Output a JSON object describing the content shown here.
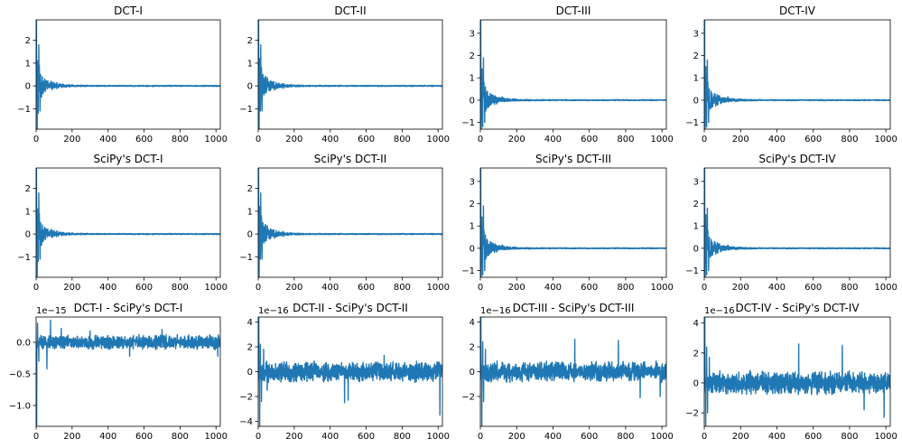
{
  "figure": {
    "line_color": "#1f77b4"
  },
  "chart_data": [
    {
      "type": "line",
      "title": "DCT-I",
      "xlim": [
        0,
        1024
      ],
      "ylim": [
        -1.9,
        2.9
      ],
      "xticks": [
        0,
        200,
        400,
        600,
        800,
        1000
      ],
      "yticks": [
        -1,
        0,
        1,
        2
      ],
      "offset_text": "",
      "signal": {
        "seed": 11,
        "spikes": [
          [
            2,
            2.9
          ],
          [
            6,
            -1.9
          ],
          [
            10,
            1.1
          ],
          [
            12,
            -1.2
          ],
          [
            15,
            1.8
          ],
          [
            18,
            0.9
          ],
          [
            22,
            -1.1
          ],
          [
            25,
            0.5
          ],
          [
            30,
            -0.5
          ],
          [
            35,
            0.4
          ],
          [
            40,
            -0.3
          ],
          [
            48,
            0.3
          ],
          [
            60,
            0.2
          ],
          [
            90,
            0.15
          ]
        ],
        "decay": 60,
        "amp0": 0.6,
        "floor": 0.02
      }
    },
    {
      "type": "line",
      "title": "DCT-II",
      "xlim": [
        0,
        1024
      ],
      "ylim": [
        -1.9,
        2.9
      ],
      "xticks": [
        0,
        200,
        400,
        600,
        800,
        1000
      ],
      "yticks": [
        -1,
        0,
        1,
        2
      ],
      "offset_text": "",
      "signal": {
        "seed": 12,
        "spikes": [
          [
            2,
            2.9
          ],
          [
            5,
            -1.9
          ],
          [
            9,
            1.2
          ],
          [
            12,
            -1.1
          ],
          [
            14,
            1.8
          ],
          [
            18,
            0.8
          ],
          [
            21,
            -1.1
          ],
          [
            26,
            0.5
          ],
          [
            31,
            -0.4
          ],
          [
            36,
            0.3
          ],
          [
            44,
            -0.3
          ],
          [
            52,
            0.3
          ],
          [
            70,
            0.2
          ],
          [
            100,
            0.15
          ]
        ],
        "decay": 60,
        "amp0": 0.6,
        "floor": 0.02
      }
    },
    {
      "type": "line",
      "title": "DCT-III",
      "xlim": [
        0,
        1024
      ],
      "ylim": [
        -1.3,
        3.6
      ],
      "xticks": [
        0,
        200,
        400,
        600,
        800,
        1000
      ],
      "yticks": [
        -1,
        0,
        1,
        2,
        3
      ],
      "offset_text": "",
      "signal": {
        "seed": 13,
        "spikes": [
          [
            2,
            3.6
          ],
          [
            5,
            -1.3
          ],
          [
            9,
            1.4
          ],
          [
            13,
            -1.2
          ],
          [
            17,
            1.9
          ],
          [
            20,
            0.8
          ],
          [
            24,
            -1.0
          ],
          [
            28,
            0.6
          ],
          [
            33,
            -0.4
          ],
          [
            38,
            0.4
          ],
          [
            46,
            -0.3
          ],
          [
            55,
            0.3
          ],
          [
            80,
            0.2
          ],
          [
            120,
            0.15
          ]
        ],
        "decay": 60,
        "amp0": 0.6,
        "floor": 0.02
      }
    },
    {
      "type": "line",
      "title": "DCT-IV",
      "xlim": [
        0,
        1024
      ],
      "ylim": [
        -1.3,
        3.6
      ],
      "xticks": [
        0,
        200,
        400,
        600,
        800,
        1000
      ],
      "yticks": [
        -1,
        0,
        1,
        2,
        3
      ],
      "offset_text": "",
      "signal": {
        "seed": 14,
        "spikes": [
          [
            2,
            3.6
          ],
          [
            5,
            -1.3
          ],
          [
            9,
            1.5
          ],
          [
            13,
            -1.2
          ],
          [
            17,
            1.8
          ],
          [
            20,
            0.8
          ],
          [
            24,
            -1.0
          ],
          [
            28,
            0.5
          ],
          [
            33,
            -0.4
          ],
          [
            38,
            0.4
          ],
          [
            46,
            -0.3
          ],
          [
            56,
            0.3
          ],
          [
            84,
            0.2
          ],
          [
            130,
            0.15
          ]
        ],
        "decay": 60,
        "amp0": 0.6,
        "floor": 0.02
      }
    },
    {
      "type": "line",
      "title": "SciPy's DCT-I",
      "xlim": [
        0,
        1024
      ],
      "ylim": [
        -1.9,
        2.9
      ],
      "xticks": [
        0,
        200,
        400,
        600,
        800,
        1000
      ],
      "yticks": [
        -1,
        0,
        1,
        2
      ],
      "offset_text": "",
      "signal": {
        "seed": 11,
        "spikes": [
          [
            2,
            2.9
          ],
          [
            6,
            -1.9
          ],
          [
            10,
            1.1
          ],
          [
            12,
            -1.2
          ],
          [
            15,
            1.8
          ],
          [
            18,
            0.9
          ],
          [
            22,
            -1.1
          ],
          [
            25,
            0.5
          ],
          [
            30,
            -0.5
          ],
          [
            35,
            0.4
          ],
          [
            40,
            -0.3
          ],
          [
            48,
            0.3
          ],
          [
            60,
            0.2
          ],
          [
            90,
            0.15
          ]
        ],
        "decay": 60,
        "amp0": 0.6,
        "floor": 0.02
      }
    },
    {
      "type": "line",
      "title": "SciPy's DCT-II",
      "xlim": [
        0,
        1024
      ],
      "ylim": [
        -1.9,
        2.9
      ],
      "xticks": [
        0,
        200,
        400,
        600,
        800,
        1000
      ],
      "yticks": [
        -1,
        0,
        1,
        2
      ],
      "offset_text": "",
      "signal": {
        "seed": 12,
        "spikes": [
          [
            2,
            2.9
          ],
          [
            5,
            -1.9
          ],
          [
            9,
            1.2
          ],
          [
            12,
            -1.1
          ],
          [
            14,
            1.8
          ],
          [
            18,
            0.8
          ],
          [
            21,
            -1.1
          ],
          [
            26,
            0.5
          ],
          [
            31,
            -0.4
          ],
          [
            36,
            0.3
          ],
          [
            44,
            -0.3
          ],
          [
            52,
            0.3
          ],
          [
            70,
            0.2
          ],
          [
            100,
            0.15
          ]
        ],
        "decay": 60,
        "amp0": 0.6,
        "floor": 0.02
      }
    },
    {
      "type": "line",
      "title": "SciPy's DCT-III",
      "xlim": [
        0,
        1024
      ],
      "ylim": [
        -1.3,
        3.6
      ],
      "xticks": [
        0,
        200,
        400,
        600,
        800,
        1000
      ],
      "yticks": [
        -1,
        0,
        1,
        2,
        3
      ],
      "offset_text": "",
      "signal": {
        "seed": 13,
        "spikes": [
          [
            2,
            3.6
          ],
          [
            5,
            -1.3
          ],
          [
            9,
            1.4
          ],
          [
            13,
            -1.2
          ],
          [
            17,
            1.9
          ],
          [
            20,
            0.8
          ],
          [
            24,
            -1.0
          ],
          [
            28,
            0.6
          ],
          [
            33,
            -0.4
          ],
          [
            38,
            0.4
          ],
          [
            46,
            -0.3
          ],
          [
            55,
            0.3
          ],
          [
            80,
            0.2
          ],
          [
            120,
            0.15
          ]
        ],
        "decay": 60,
        "amp0": 0.6,
        "floor": 0.02
      }
    },
    {
      "type": "line",
      "title": "SciPy's DCT-IV",
      "xlim": [
        0,
        1024
      ],
      "ylim": [
        -1.3,
        3.6
      ],
      "xticks": [
        0,
        200,
        400,
        600,
        800,
        1000
      ],
      "yticks": [
        -1,
        0,
        1,
        2,
        3
      ],
      "offset_text": "",
      "signal": {
        "seed": 14,
        "spikes": [
          [
            2,
            3.6
          ],
          [
            5,
            -1.3
          ],
          [
            9,
            1.5
          ],
          [
            13,
            -1.2
          ],
          [
            17,
            1.8
          ],
          [
            20,
            0.8
          ],
          [
            24,
            -1.0
          ],
          [
            28,
            0.5
          ],
          [
            33,
            -0.4
          ],
          [
            38,
            0.4
          ],
          [
            46,
            -0.3
          ],
          [
            56,
            0.3
          ],
          [
            84,
            0.2
          ],
          [
            130,
            0.15
          ]
        ],
        "decay": 60,
        "amp0": 0.6,
        "floor": 0.02
      }
    },
    {
      "type": "line",
      "title": "DCT-I - SciPy's DCT-I",
      "xlim": [
        0,
        1024
      ],
      "ylim": [
        -1.33,
        0.4
      ],
      "xticks": [
        0,
        200,
        400,
        600,
        800,
        1000
      ],
      "yticks": [
        -1.0,
        -0.5,
        0.0
      ],
      "offset_text": "1e−15",
      "signal": {
        "seed": 21,
        "spikes": [
          [
            3,
            -1.33
          ],
          [
            8,
            0.3
          ],
          [
            15,
            -0.3
          ],
          [
            60,
            -0.42
          ],
          [
            80,
            0.35
          ],
          [
            140,
            0.22
          ],
          [
            300,
            0.18
          ],
          [
            520,
            -0.22
          ],
          [
            700,
            0.2
          ],
          [
            1010,
            -0.22
          ]
        ],
        "decay": 0,
        "amp0": 0,
        "floor": 0.09
      }
    },
    {
      "type": "line",
      "title": "DCT-II - SciPy's DCT-II",
      "xlim": [
        0,
        1024
      ],
      "ylim": [
        -4.4,
        4.4
      ],
      "xticks": [
        0,
        200,
        400,
        600,
        800,
        1000
      ],
      "yticks": [
        -4,
        -2,
        0,
        2,
        4
      ],
      "offset_text": "1e−16",
      "signal": {
        "seed": 22,
        "spikes": [
          [
            3,
            4.4
          ],
          [
            8,
            -4.4
          ],
          [
            12,
            2.2
          ],
          [
            18,
            -2.4
          ],
          [
            30,
            1.8
          ],
          [
            50,
            -1.5
          ],
          [
            480,
            -2.5
          ],
          [
            500,
            -2.3
          ],
          [
            700,
            1.3
          ],
          [
            1010,
            -3.5
          ]
        ],
        "decay": 0,
        "amp0": 0,
        "floor": 0.65
      }
    },
    {
      "type": "line",
      "title": "DCT-III - SciPy's DCT-III",
      "xlim": [
        0,
        1024
      ],
      "ylim": [
        -4.4,
        4.4
      ],
      "xticks": [
        0,
        200,
        400,
        600,
        800,
        1000
      ],
      "yticks": [
        -2,
        0,
        2,
        4
      ],
      "offset_text": "1e−16",
      "signal": {
        "seed": 23,
        "spikes": [
          [
            3,
            4.4
          ],
          [
            8,
            -4.4
          ],
          [
            13,
            2.4
          ],
          [
            18,
            -2.4
          ],
          [
            28,
            1.8
          ],
          [
            520,
            2.6
          ],
          [
            760,
            2.5
          ],
          [
            880,
            -2.1
          ],
          [
            990,
            -2.0
          ]
        ],
        "decay": 0,
        "amp0": 0,
        "floor": 0.65
      }
    },
    {
      "type": "line",
      "title": "DCT-IV - SciPy's DCT-IV",
      "xlim": [
        0,
        1024
      ],
      "ylim": [
        -2.9,
        4.4
      ],
      "xticks": [
        0,
        200,
        400,
        600,
        800,
        1000
      ],
      "yticks": [
        -2,
        0,
        2,
        4
      ],
      "offset_text": "1e−16",
      "signal": {
        "seed": 24,
        "spikes": [
          [
            3,
            4.4
          ],
          [
            8,
            -2.9
          ],
          [
            13,
            2.4
          ],
          [
            18,
            -2.0
          ],
          [
            28,
            1.7
          ],
          [
            520,
            2.6
          ],
          [
            760,
            2.5
          ],
          [
            880,
            -1.8
          ],
          [
            990,
            -2.3
          ]
        ],
        "decay": 0,
        "amp0": 0,
        "floor": 0.6
      }
    }
  ]
}
